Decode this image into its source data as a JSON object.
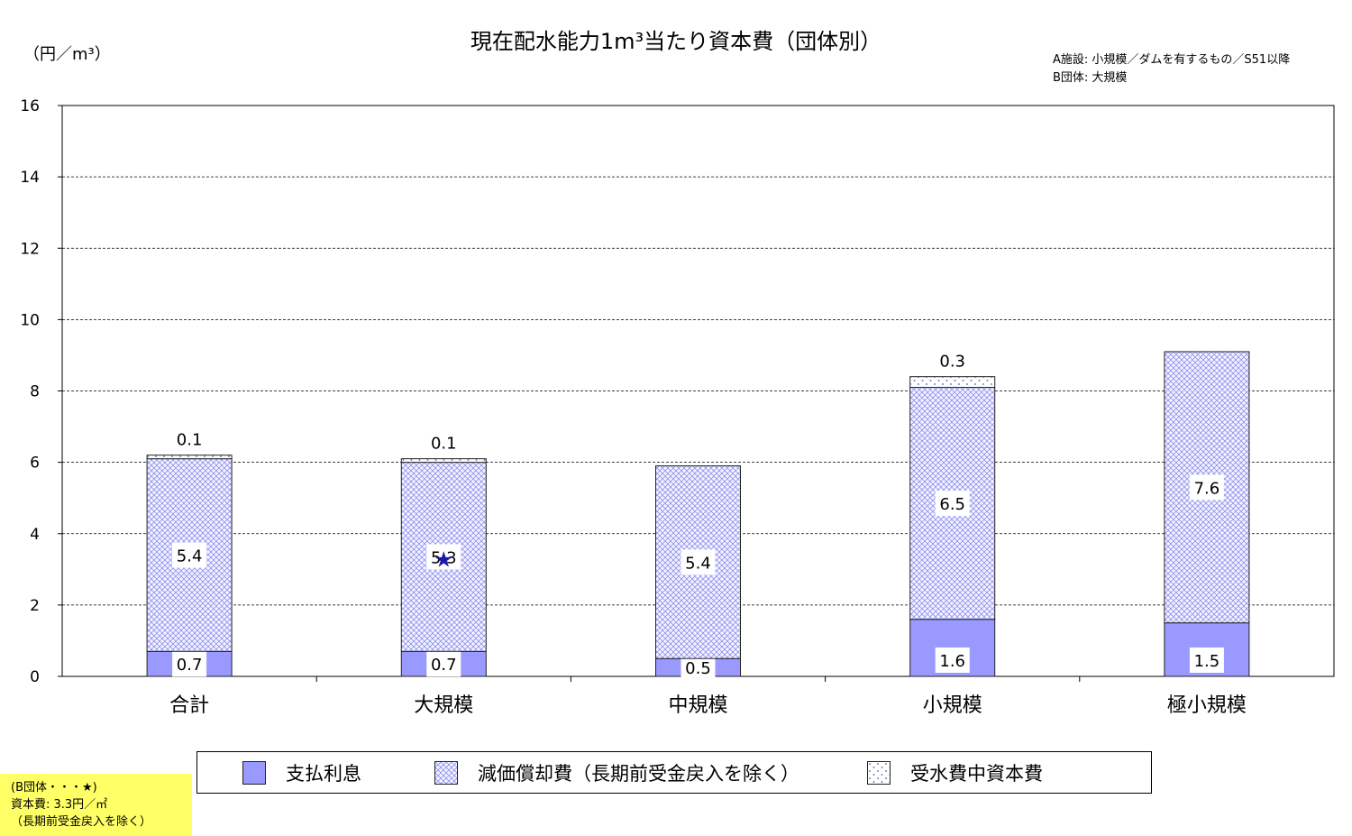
{
  "title": "現在配水能力1m³当たり資本費（団体別）",
  "unit_label": "（円／m³）",
  "note_top_right": [
    "A施設: 小規模／ダムを有するもの／S51以降",
    "B団体: 大規模"
  ],
  "note_bottom_left": [
    "(B団体・・・★)",
    "資本費: 3.3円／㎡",
    "（長期前受金戻入を除く）"
  ],
  "colors": {
    "interest": "#9999ff",
    "depreciation_pattern": "#8f8fee",
    "water_purchase_pattern": "#6f86c6",
    "star": "#1a1aa6",
    "grid": "#000000"
  },
  "legend": [
    {
      "label": "支払利息",
      "icon": "solid-swatch"
    },
    {
      "label": "減価償却費（長期前受金戻入を除く）",
      "icon": "crosshatch-swatch"
    },
    {
      "label": "受水費中資本費",
      "icon": "dotted-swatch"
    }
  ],
  "chart_data": {
    "type": "bar",
    "stacked": true,
    "categories": [
      "合計",
      "大規模",
      "中規模",
      "小規模",
      "極小規模"
    ],
    "series": [
      {
        "name": "支払利息",
        "values": [
          0.7,
          0.7,
          0.5,
          1.6,
          1.5
        ],
        "labels": [
          "0.7",
          "0.7",
          "0.5",
          "1.6",
          "1.5"
        ]
      },
      {
        "name": "減価償却費（長期前受金戻入を除く）",
        "values": [
          5.4,
          5.3,
          5.4,
          6.5,
          7.6
        ],
        "labels": [
          "5.4",
          "5.3",
          "5.4",
          "6.5",
          "7.6"
        ]
      },
      {
        "name": "受水費中資本費",
        "values": [
          0.1,
          0.1,
          0,
          0.3,
          0
        ],
        "labels": [
          "0.1",
          "0.1",
          "",
          "0.3",
          ""
        ]
      }
    ],
    "marker": {
      "category": "大規模",
      "symbol": "★",
      "value": 3.3
    },
    "ylim": [
      0,
      16
    ],
    "yticks": [
      0,
      2,
      4,
      6,
      8,
      10,
      12,
      14,
      16
    ],
    "grid": true,
    "legend_position": "bottom"
  }
}
